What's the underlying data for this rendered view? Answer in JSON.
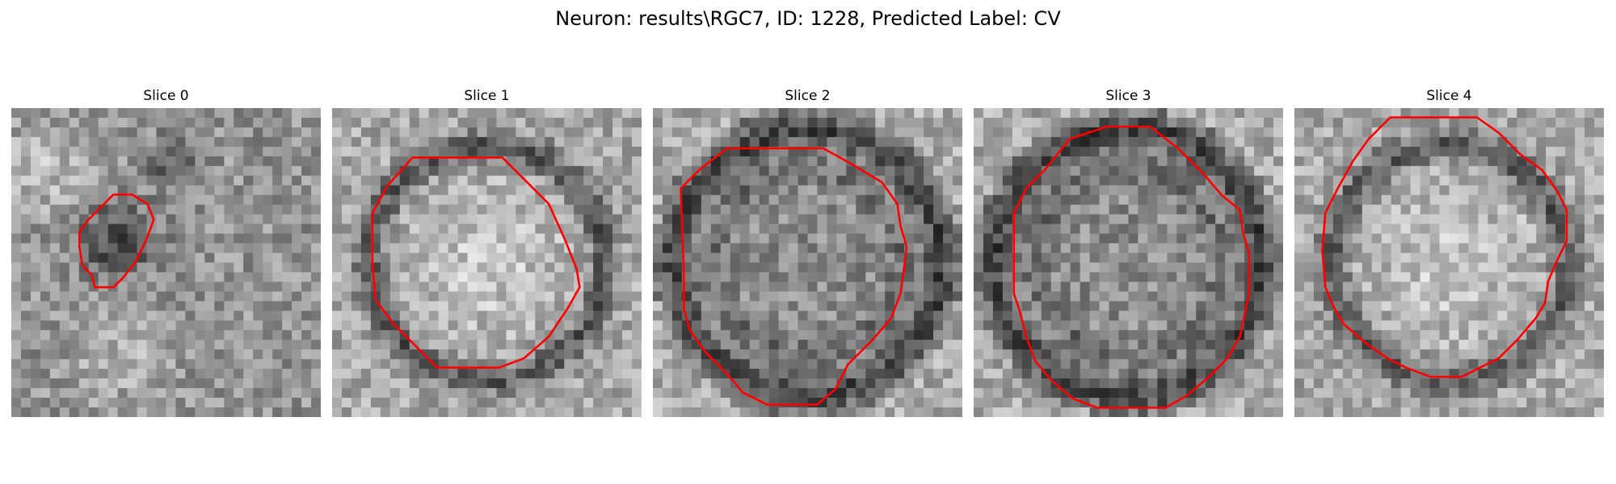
{
  "suptitle": "Neuron: results\\RGC7, ID: 1228, Predicted Label: CV",
  "colors": {
    "contour": "#ff0000",
    "background": "#ffffff"
  },
  "panels": [
    {
      "title": "Slice 0",
      "seed": 11,
      "style": "dark-blob",
      "contour": [
        [
          0.39,
          0.28
        ],
        [
          0.44,
          0.31
        ],
        [
          0.46,
          0.36
        ],
        [
          0.45,
          0.39
        ],
        [
          0.43,
          0.44
        ],
        [
          0.4,
          0.5
        ],
        [
          0.36,
          0.55
        ],
        [
          0.33,
          0.58
        ],
        [
          0.27,
          0.58
        ],
        [
          0.26,
          0.54
        ],
        [
          0.23,
          0.51
        ],
        [
          0.22,
          0.45
        ],
        [
          0.22,
          0.4
        ],
        [
          0.25,
          0.36
        ],
        [
          0.29,
          0.32
        ],
        [
          0.33,
          0.28
        ]
      ]
    },
    {
      "title": "Slice 1",
      "seed": 23,
      "style": "ring-bright",
      "contour": [
        [
          0.26,
          0.16
        ],
        [
          0.39,
          0.16
        ],
        [
          0.55,
          0.16
        ],
        [
          0.62,
          0.23
        ],
        [
          0.7,
          0.31
        ],
        [
          0.75,
          0.42
        ],
        [
          0.79,
          0.52
        ],
        [
          0.8,
          0.58
        ],
        [
          0.76,
          0.65
        ],
        [
          0.7,
          0.74
        ],
        [
          0.62,
          0.81
        ],
        [
          0.54,
          0.84
        ],
        [
          0.44,
          0.84
        ],
        [
          0.34,
          0.84
        ],
        [
          0.27,
          0.77
        ],
        [
          0.2,
          0.7
        ],
        [
          0.14,
          0.62
        ],
        [
          0.13,
          0.5
        ],
        [
          0.13,
          0.34
        ],
        [
          0.18,
          0.25
        ]
      ]
    },
    {
      "title": "Slice 2",
      "seed": 37,
      "style": "ring-dark",
      "contour": [
        [
          0.24,
          0.13
        ],
        [
          0.38,
          0.13
        ],
        [
          0.55,
          0.13
        ],
        [
          0.64,
          0.18
        ],
        [
          0.74,
          0.24
        ],
        [
          0.79,
          0.31
        ],
        [
          0.8,
          0.38
        ],
        [
          0.82,
          0.45
        ],
        [
          0.81,
          0.53
        ],
        [
          0.8,
          0.6
        ],
        [
          0.77,
          0.68
        ],
        [
          0.71,
          0.75
        ],
        [
          0.63,
          0.83
        ],
        [
          0.59,
          0.91
        ],
        [
          0.53,
          0.96
        ],
        [
          0.45,
          0.96
        ],
        [
          0.37,
          0.96
        ],
        [
          0.29,
          0.92
        ],
        [
          0.24,
          0.86
        ],
        [
          0.17,
          0.79
        ],
        [
          0.12,
          0.72
        ],
        [
          0.1,
          0.65
        ],
        [
          0.1,
          0.53
        ],
        [
          0.09,
          0.26
        ],
        [
          0.15,
          0.2
        ]
      ]
    },
    {
      "title": "Slice 3",
      "seed": 41,
      "style": "ring-dark",
      "contour": [
        [
          0.31,
          0.1
        ],
        [
          0.43,
          0.06
        ],
        [
          0.57,
          0.06
        ],
        [
          0.66,
          0.13
        ],
        [
          0.74,
          0.21
        ],
        [
          0.8,
          0.28
        ],
        [
          0.86,
          0.33
        ],
        [
          0.87,
          0.4
        ],
        [
          0.89,
          0.47
        ],
        [
          0.89,
          0.6
        ],
        [
          0.86,
          0.74
        ],
        [
          0.82,
          0.81
        ],
        [
          0.76,
          0.87
        ],
        [
          0.69,
          0.93
        ],
        [
          0.62,
          0.97
        ],
        [
          0.53,
          0.97
        ],
        [
          0.4,
          0.97
        ],
        [
          0.32,
          0.94
        ],
        [
          0.25,
          0.88
        ],
        [
          0.2,
          0.82
        ],
        [
          0.17,
          0.74
        ],
        [
          0.15,
          0.66
        ],
        [
          0.13,
          0.6
        ],
        [
          0.13,
          0.45
        ],
        [
          0.13,
          0.34
        ],
        [
          0.17,
          0.26
        ],
        [
          0.23,
          0.2
        ]
      ]
    },
    {
      "title": "Slice 4",
      "seed": 53,
      "style": "ring-bright",
      "contour": [
        [
          0.31,
          0.03
        ],
        [
          0.44,
          0.03
        ],
        [
          0.59,
          0.03
        ],
        [
          0.66,
          0.08
        ],
        [
          0.73,
          0.15
        ],
        [
          0.8,
          0.2
        ],
        [
          0.85,
          0.27
        ],
        [
          0.88,
          0.33
        ],
        [
          0.88,
          0.43
        ],
        [
          0.85,
          0.49
        ],
        [
          0.82,
          0.56
        ],
        [
          0.81,
          0.63
        ],
        [
          0.78,
          0.68
        ],
        [
          0.72,
          0.75
        ],
        [
          0.66,
          0.81
        ],
        [
          0.6,
          0.84
        ],
        [
          0.54,
          0.87
        ],
        [
          0.5,
          0.87
        ],
        [
          0.44,
          0.87
        ],
        [
          0.36,
          0.84
        ],
        [
          0.3,
          0.81
        ],
        [
          0.23,
          0.76
        ],
        [
          0.16,
          0.7
        ],
        [
          0.13,
          0.65
        ],
        [
          0.1,
          0.58
        ],
        [
          0.09,
          0.46
        ],
        [
          0.1,
          0.34
        ],
        [
          0.14,
          0.26
        ],
        [
          0.19,
          0.17
        ],
        [
          0.24,
          0.1
        ]
      ]
    }
  ]
}
